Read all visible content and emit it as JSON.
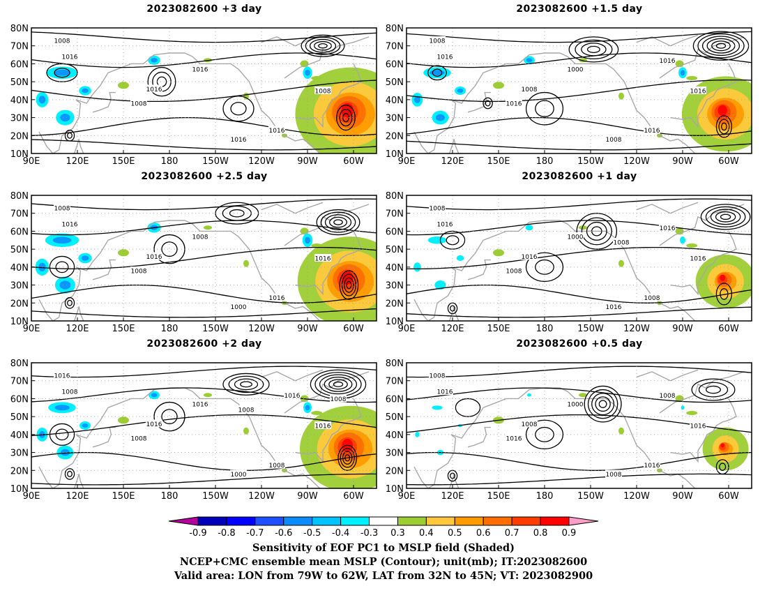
{
  "panels": [
    {
      "title": "2023082600  +3 day",
      "labels": [
        "1008",
        "1016",
        "1016",
        "1008",
        "1016",
        "1016",
        "1016",
        "1008"
      ],
      "hot": 1.0,
      "cold": 1.0
    },
    {
      "title": "2023082600  +1.5 day",
      "labels": [
        "1008",
        "1016",
        "1008",
        "1016",
        "1000",
        "1008",
        "1016",
        "1016",
        "1016"
      ],
      "hot": 0.75,
      "cold": 0.9
    },
    {
      "title": "2023082600  +2.5 day",
      "labels": [
        "1008",
        "1016",
        "1016",
        "1008",
        "1008",
        "1000",
        "1016",
        "1016"
      ],
      "hot": 0.95,
      "cold": 1.1
    },
    {
      "title": "2023082600  +1 day",
      "labels": [
        "1008",
        "1016",
        "1016",
        "1008",
        "1000",
        "1016",
        "1008",
        "1016",
        "1016",
        "1008"
      ],
      "hot": 0.45,
      "cold": 0.6
    },
    {
      "title": "2023082600  +2 day",
      "labels": [
        "1016",
        "1008",
        "1016",
        "1008",
        "1016",
        "1000",
        "1008",
        "1016",
        "1016",
        "1008",
        "1008"
      ],
      "hot": 0.9,
      "cold": 0.9
    },
    {
      "title": "2023082600  +0.5 day",
      "labels": [
        "1008",
        "1016",
        "1008",
        "1016",
        "1000",
        "1008",
        "1016",
        "1016",
        "1008"
      ],
      "hot": 0.3,
      "cold": 0.35
    }
  ],
  "axes": {
    "lat_labels": [
      "80N",
      "70N",
      "60N",
      "50N",
      "40N",
      "30N",
      "20N",
      "10N"
    ],
    "lon_labels": [
      "90E",
      "120E",
      "150E",
      "180",
      "150W",
      "120W",
      "90W",
      "60W"
    ]
  },
  "colorbar": {
    "colors": [
      "#b3009a",
      "#0000b8",
      "#0000ff",
      "#1e50ff",
      "#0a8cff",
      "#00c3ff",
      "#00f0ff",
      "#ffffff",
      "#9ccd32",
      "#ffc83c",
      "#ff9b00",
      "#ff6e00",
      "#ff3c00",
      "#ff0000",
      "#ff9ec8"
    ],
    "labels": [
      "-0.9",
      "-0.8",
      "-0.7",
      "-0.6",
      "-0.5",
      "-0.4",
      "-0.3",
      "0.3",
      "0.4",
      "0.5",
      "0.6",
      "0.7",
      "0.8",
      "0.9"
    ]
  },
  "caption": {
    "line1": "Sensitivity of EOF PC1 to MSLP field (Shaded)",
    "line2": "NCEP+CMC ensemble mean MSLP (Contour); unit(mb); IT:2023082600",
    "line3": "Valid area: LON from 79W to 62W, LAT from 32N to 45N; VT: 2023082900"
  }
}
